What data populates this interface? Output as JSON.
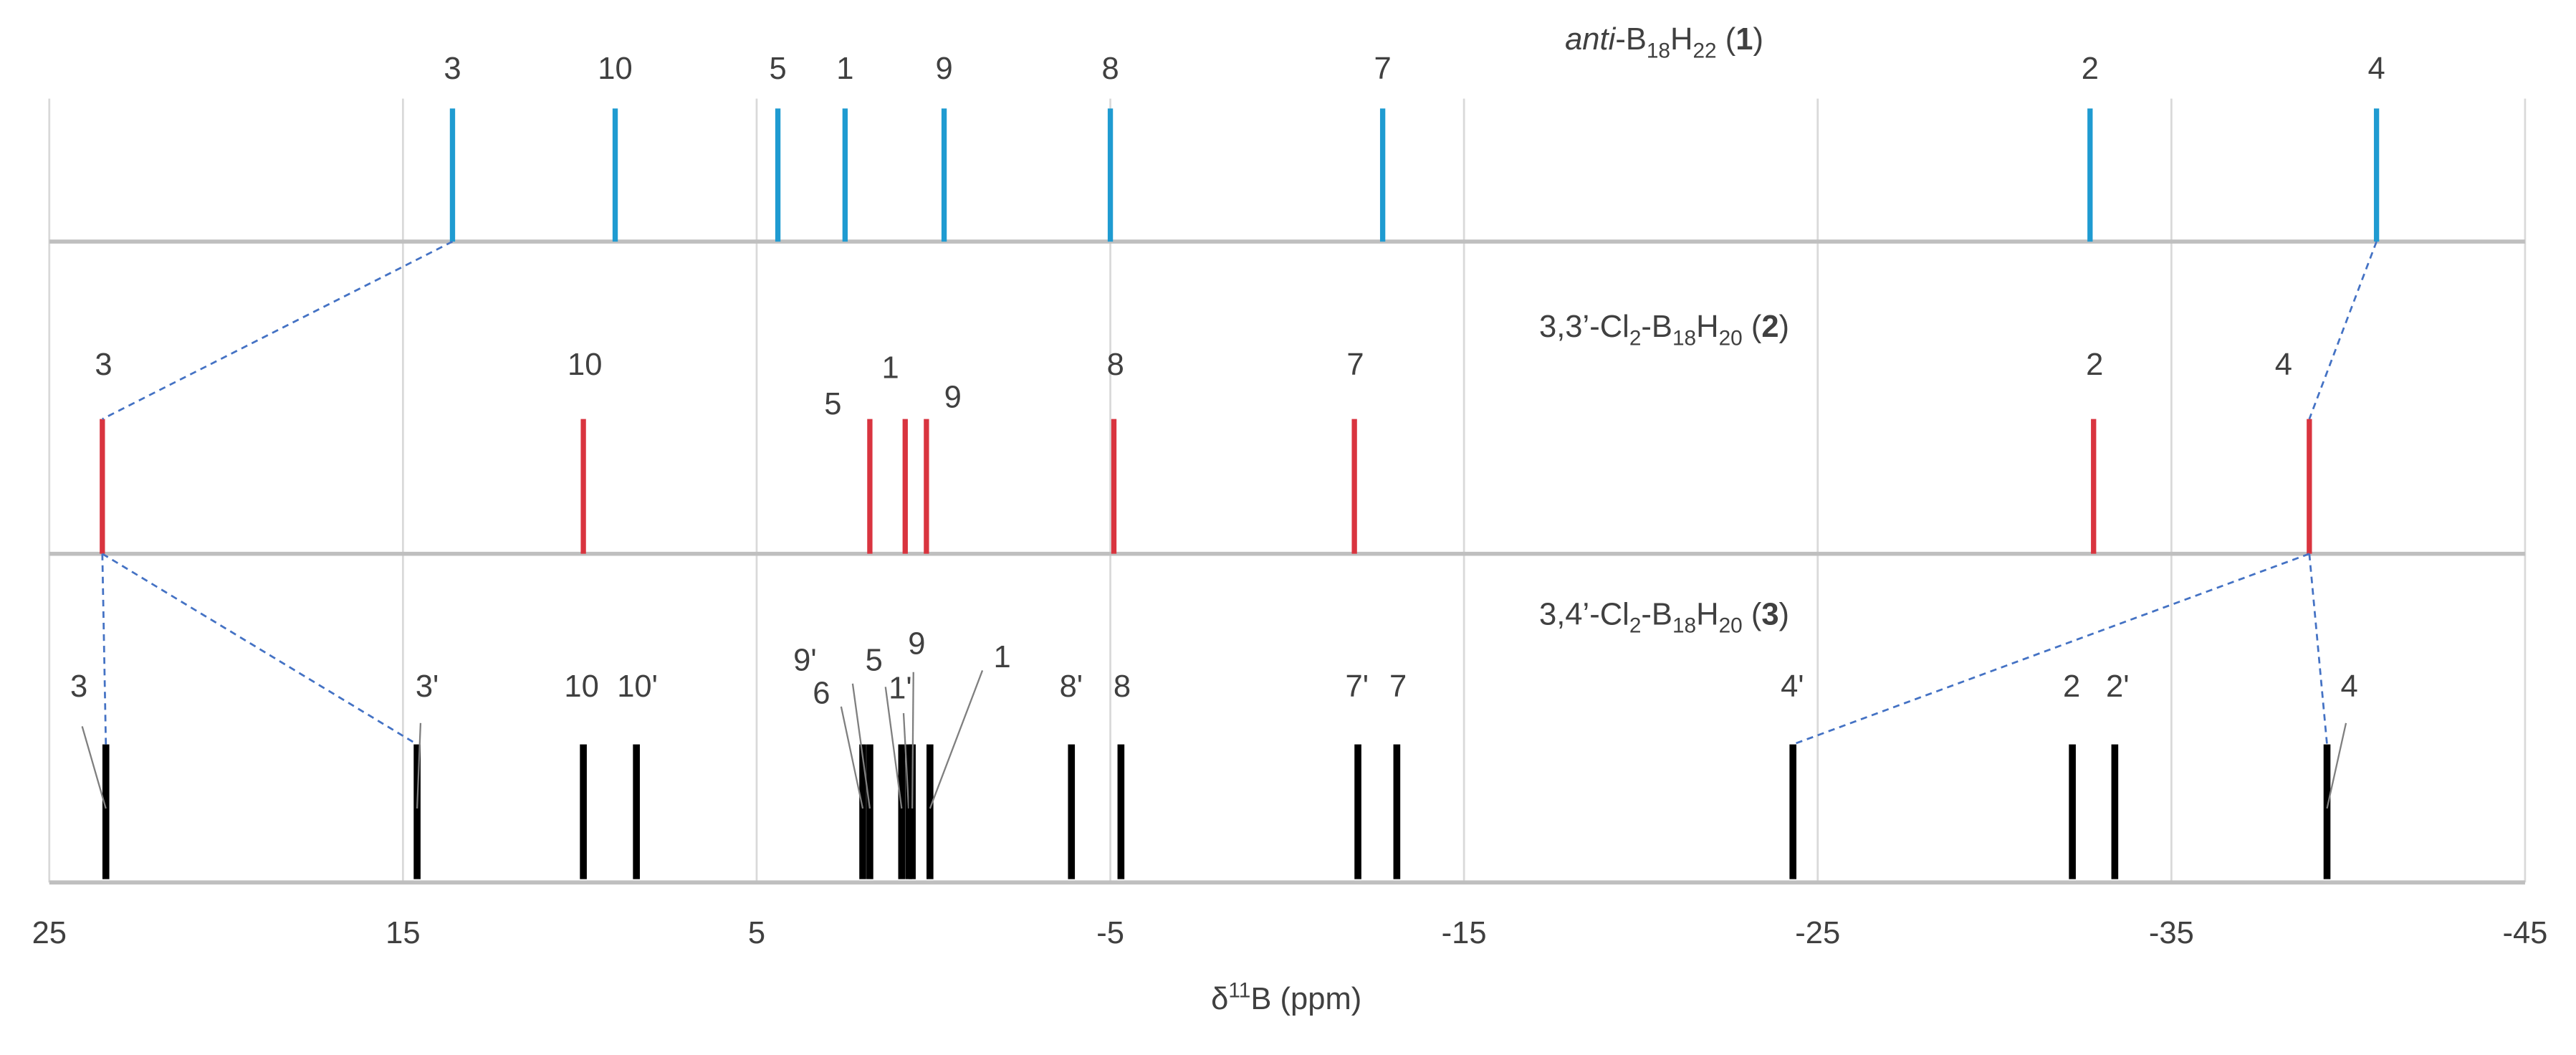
{
  "chart_data": {
    "type": "stick",
    "xlim": [
      25,
      -45
    ],
    "xticks": [
      25,
      15,
      5,
      -5,
      -15,
      -25,
      -35,
      -45
    ],
    "grid": true,
    "xlabel_parts": [
      {
        "text": "δ"
      },
      {
        "text": "11",
        "style": "sup"
      },
      {
        "text": "B (ppm)"
      }
    ],
    "panels": [
      {
        "title_parts": [
          {
            "text": "anti",
            "style": "i"
          },
          {
            "text": "-B"
          },
          {
            "text": "18",
            "style": "sub"
          },
          {
            "text": "H"
          },
          {
            "text": "22",
            "style": "sub"
          },
          {
            "text": " ("
          },
          {
            "text": "1",
            "style": "b"
          },
          {
            "text": ")"
          }
        ],
        "color": "#1f9bd1",
        "labels": [
          "3",
          "10",
          "5",
          "1",
          "9",
          "8",
          "7",
          "2",
          "4"
        ],
        "values": [
          13.6,
          9.0,
          4.4,
          2.5,
          -0.3,
          -5.0,
          -12.7,
          -32.7,
          -40.8
        ]
      },
      {
        "title_parts": [
          {
            "text": "3,3’-Cl"
          },
          {
            "text": "2",
            "style": "sub"
          },
          {
            "text": "-B"
          },
          {
            "text": "18",
            "style": "sub"
          },
          {
            "text": "H"
          },
          {
            "text": "20",
            "style": "sub"
          },
          {
            "text": " ("
          },
          {
            "text": "2",
            "style": "b"
          },
          {
            "text": ")"
          }
        ],
        "color": "#d9343f",
        "labels": [
          "3",
          "10",
          "5",
          "1",
          "9",
          "8",
          "7",
          "2",
          "4"
        ],
        "values": [
          23.5,
          9.9,
          1.8,
          0.8,
          0.2,
          -5.1,
          -11.9,
          -32.8,
          -38.9
        ]
      },
      {
        "title_parts": [
          {
            "text": "3,4’-Cl"
          },
          {
            "text": "2",
            "style": "sub"
          },
          {
            "text": "-B"
          },
          {
            "text": "18",
            "style": "sub"
          },
          {
            "text": "H"
          },
          {
            "text": "20",
            "style": "sub"
          },
          {
            "text": " ("
          },
          {
            "text": "3",
            "style": "b"
          },
          {
            "text": ")"
          }
        ],
        "color": "#000000",
        "labels": [
          "3",
          "3'",
          "10",
          "10'",
          "6",
          "9'",
          "5",
          "1'",
          "9",
          "1",
          "8'",
          "8",
          "7'",
          "7",
          "4'",
          "2",
          "2'",
          "4"
        ],
        "values": [
          23.4,
          14.6,
          9.9,
          8.4,
          2.0,
          1.8,
          0.9,
          0.7,
          0.6,
          0.1,
          -3.9,
          -5.3,
          -12.0,
          -13.1,
          -24.3,
          -32.2,
          -33.4,
          -39.4
        ]
      }
    ]
  }
}
